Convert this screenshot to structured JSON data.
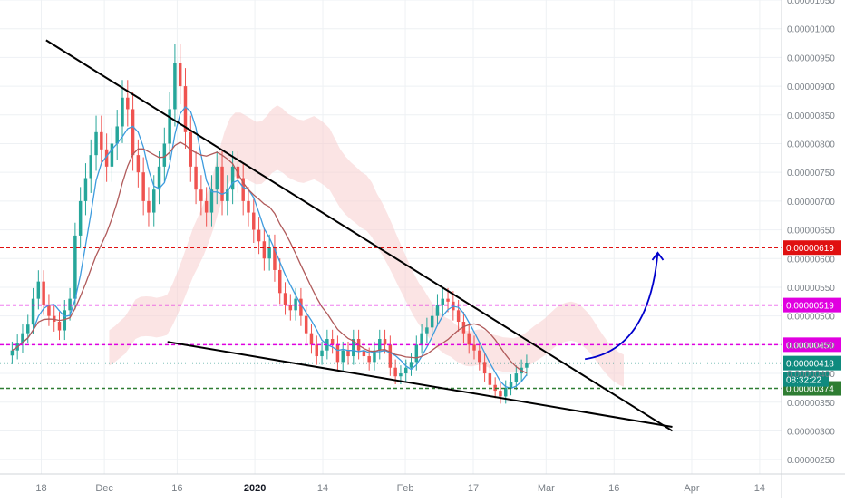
{
  "chart_data": {
    "type": "candlestick",
    "title": "",
    "xlabel": "",
    "ylabel": "",
    "ylim": [
      2.25e-06,
      1.05e-05
    ],
    "grid": true,
    "legend": "none",
    "x_ticks": [
      {
        "label": "18",
        "day": 0
      },
      {
        "label": "Dec",
        "day": 13
      },
      {
        "label": "16",
        "day": 28
      },
      {
        "label": "2020",
        "day": 44
      },
      {
        "label": "14",
        "day": 58
      },
      {
        "label": "Feb",
        "day": 75
      },
      {
        "label": "17",
        "day": 89
      },
      {
        "label": "Mar",
        "day": 104
      },
      {
        "label": "16",
        "day": 118
      },
      {
        "label": "Apr",
        "day": 134
      },
      {
        "label": "14",
        "day": 148
      }
    ],
    "x_range": [
      -8.5,
      152.5
    ],
    "y_ticks": [
      "0.00001050",
      "0.00001000",
      "0.00000950",
      "0.00000900",
      "0.00000850",
      "0.00000800",
      "0.00000750",
      "0.00000700",
      "0.00000650",
      "0.00000600",
      "0.00000550",
      "0.00000500",
      "0.00000450",
      "0.00000400",
      "0.00000350",
      "0.00000300",
      "0.00000250"
    ],
    "y_tick_values": [
      1.05e-05,
      1e-05,
      9.5e-06,
      9e-06,
      8.5e-06,
      8e-06,
      7.5e-06,
      7e-06,
      6.5e-06,
      6e-06,
      5.5e-06,
      5e-06,
      4.5e-06,
      4e-06,
      3.5e-06,
      3e-06,
      2.5e-06
    ],
    "candles_close": [
      4.4e-06,
      4.52e-06,
      4.7e-06,
      4.85e-06,
      5.3e-06,
      5.6e-06,
      5.2e-06,
      5e-06,
      4.9e-06,
      4.75e-06,
      5.1e-06,
      5.3e-06,
      6.4e-06,
      7e-06,
      7.4e-06,
      7.8e-06,
      8.2e-06,
      7.9e-06,
      7.6e-06,
      8e-06,
      8.3e-06,
      8.8e-06,
      8.6e-06,
      7.8e-06,
      7.5e-06,
      7e-06,
      6.8e-06,
      7.2e-06,
      7.6e-06,
      8e-06,
      8.6e-06,
      9.4e-06,
      9e-06,
      8.2e-06,
      7.6e-06,
      7.2e-06,
      7e-06,
      6.8e-06,
      7.2e-06,
      7.6e-06,
      7e-06,
      7.2e-06,
      7.6e-06,
      7.4e-06,
      7e-06,
      6.8e-06,
      6.5e-06,
      6.3e-06,
      6e-06,
      6.2e-06,
      5.8e-06,
      5.4e-06,
      5.2e-06,
      5.1e-06,
      5.3e-06,
      5e-06,
      4.7e-06,
      4.5e-06,
      4.3e-06,
      4.4e-06,
      4.6e-06,
      4.5e-06,
      4.2e-06,
      4.4e-06,
      4.3e-06,
      4.6e-06,
      4.4e-06,
      4.3e-06,
      4.2e-06,
      4.4e-06,
      4.6e-06,
      4.5e-06,
      4.1e-06,
      3.95e-06,
      4e-06,
      4.1e-06,
      4.2e-06,
      4.5e-06,
      4.7e-06,
      4.8e-06,
      5e-06,
      5.2e-06,
      5.3e-06,
      5.25e-06,
      5.1e-06,
      4.9e-06,
      4.7e-06,
      4.5e-06,
      4.4e-06,
      4.2e-06,
      4e-06,
      3.8e-06,
      3.7e-06,
      3.6e-06,
      3.75e-06,
      3.85e-06,
      4e-06,
      4.1e-06,
      4.18e-06
    ],
    "series": [
      {
        "name": "",
        "color": "#3d9bde"
      },
      {
        "name": "",
        "color": "#b05a5a"
      }
    ],
    "lines": [
      {
        "label": "0.00000619",
        "value": 6.19e-06,
        "style": "dashed",
        "color": "#e01010"
      },
      {
        "label": "0.00000519",
        "value": 5.19e-06,
        "style": "dashed",
        "color": "#e000e0"
      },
      {
        "label": "0.00000450",
        "value": 4.5e-06,
        "style": "dashed",
        "color": "#e000e0"
      },
      {
        "label": "0.00000418",
        "value": 4.18e-06,
        "style": "dotted",
        "color": "#0f8a7e"
      },
      {
        "label": "0.00000374",
        "value": 3.74e-06,
        "style": "dashed",
        "color": "#2e7d32"
      }
    ],
    "countdown": "08:32:22",
    "trendlines": [
      {
        "from": {
          "day": 1,
          "value": 9.8e-06
        },
        "to": {
          "day": 130,
          "value": 3e-06
        }
      },
      {
        "from": {
          "day": 26,
          "value": 4.55e-06
        },
        "to": {
          "day": 130,
          "value": 3.07e-06
        }
      }
    ],
    "arrow": {
      "from": {
        "day": 112,
        "value": 4.25e-06
      },
      "to": {
        "day": 127,
        "value": 6.1e-06
      },
      "color": "#0000cc"
    }
  }
}
